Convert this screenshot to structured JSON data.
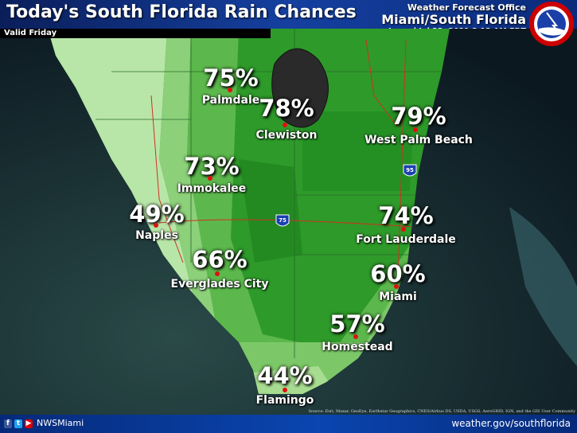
{
  "header": {
    "title": "Today's South Florida Rain Chances",
    "valid": "Valid Friday",
    "office_line1": "Weather Forecast Office",
    "office_line2": "Miami/South Florida",
    "issued": "Issued Jul 23, 2021 3:12 AM EDT",
    "logo_text": "NATIONAL WEATHER SERVICE"
  },
  "locations": [
    {
      "name": "Palmdale",
      "chance": "75%"
    },
    {
      "name": "Clewiston",
      "chance": "78%"
    },
    {
      "name": "West Palm Beach",
      "chance": "79%"
    },
    {
      "name": "Immokalee",
      "chance": "73%"
    },
    {
      "name": "Naples",
      "chance": "49%"
    },
    {
      "name": "Fort Lauderdale",
      "chance": "74%"
    },
    {
      "name": "Everglades City",
      "chance": "66%"
    },
    {
      "name": "Miami",
      "chance": "60%"
    },
    {
      "name": "Homestead",
      "chance": "57%"
    },
    {
      "name": "Flamingo",
      "chance": "44%"
    }
  ],
  "highways": {
    "i95": "95",
    "i75": "75"
  },
  "source": "Source: Esri, Maxar, GeoEye, Earthstar Geographics, CNES/Airbus DS, USDA, USGS, AeroGRID, IGN, and the GIS User Community",
  "footer": {
    "handle": "NWSMiami",
    "website": "weather.gov/southflorida",
    "icons": [
      "facebook-icon",
      "twitter-icon",
      "youtube-icon"
    ]
  },
  "colors": {
    "header": "#1540a0",
    "dot": "#e01010"
  }
}
